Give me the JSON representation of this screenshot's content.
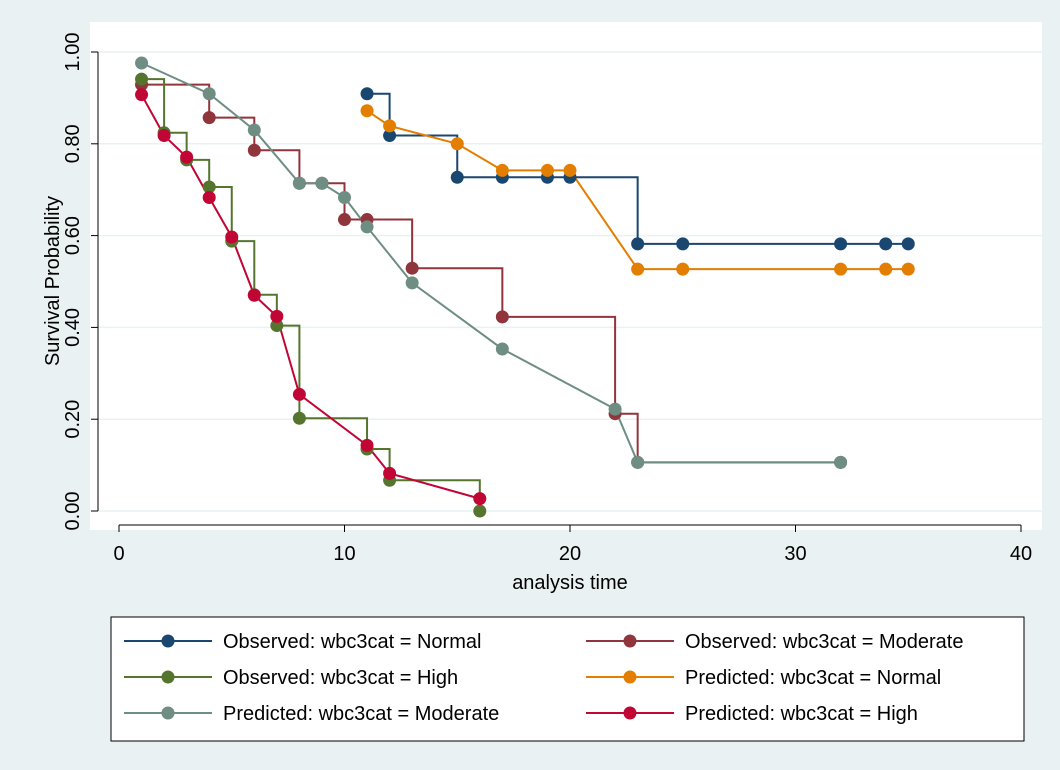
{
  "chart_data": {
    "type": "line",
    "xlabel": "analysis time",
    "ylabel": "Survival Probability",
    "xlim": [
      0,
      40
    ],
    "ylim": [
      0,
      1
    ],
    "xticks": [
      0,
      10,
      20,
      30,
      40
    ],
    "yticks": [
      0,
      0.2,
      0.4,
      0.6,
      0.8,
      1.0
    ],
    "xtick_labels": [
      "0",
      "10",
      "20",
      "30",
      "40"
    ],
    "ytick_labels": [
      "0.00",
      "0.20",
      "0.40",
      "0.60",
      "0.80",
      "1.00"
    ],
    "grid": "horizontal",
    "legend_position": "bottom",
    "series": [
      {
        "name": "Observed: wbc3cat = Normal",
        "color": "#1a476f",
        "step": true,
        "points": [
          [
            11,
            0.909
          ],
          [
            12,
            0.818
          ],
          [
            15,
            0.727
          ],
          [
            17,
            0.727
          ],
          [
            19,
            0.727
          ],
          [
            20,
            0.727
          ],
          [
            23,
            0.582
          ],
          [
            25,
            0.582
          ],
          [
            32,
            0.582
          ],
          [
            34,
            0.582
          ],
          [
            35,
            0.582
          ]
        ]
      },
      {
        "name": "Observed: wbc3cat = Moderate",
        "color": "#90353b",
        "step": true,
        "points": [
          [
            1,
            0.929
          ],
          [
            4,
            0.857
          ],
          [
            6,
            0.786
          ],
          [
            8,
            0.714
          ],
          [
            9,
            0.714
          ],
          [
            10,
            0.635
          ],
          [
            11,
            0.635
          ],
          [
            13,
            0.529
          ],
          [
            17,
            0.423
          ],
          [
            22,
            0.212
          ],
          [
            23,
            0.106
          ],
          [
            32,
            0.106
          ]
        ]
      },
      {
        "name": "Observed: wbc3cat = High",
        "color": "#55752f",
        "step": true,
        "points": [
          [
            1,
            0.941
          ],
          [
            2,
            0.824
          ],
          [
            3,
            0.765
          ],
          [
            4,
            0.706
          ],
          [
            5,
            0.588
          ],
          [
            6,
            0.471
          ],
          [
            7,
            0.404
          ],
          [
            8,
            0.202
          ],
          [
            11,
            0.135
          ],
          [
            12,
            0.067
          ],
          [
            16,
            0.0
          ]
        ]
      },
      {
        "name": "Predicted: wbc3cat = Normal",
        "color": "#e37e00",
        "step": false,
        "points": [
          [
            11,
            0.872
          ],
          [
            12,
            0.839
          ],
          [
            15,
            0.8
          ],
          [
            17,
            0.742
          ],
          [
            19,
            0.742
          ],
          [
            20,
            0.742
          ],
          [
            23,
            0.527
          ],
          [
            25,
            0.527
          ],
          [
            32,
            0.527
          ],
          [
            34,
            0.527
          ],
          [
            35,
            0.527
          ]
        ]
      },
      {
        "name": "Predicted: wbc3cat = Moderate",
        "color": "#6e8e84",
        "step": false,
        "points": [
          [
            1,
            0.976
          ],
          [
            4,
            0.909
          ],
          [
            6,
            0.83
          ],
          [
            8,
            0.714
          ],
          [
            9,
            0.714
          ],
          [
            10,
            0.683
          ],
          [
            11,
            0.619
          ],
          [
            13,
            0.497
          ],
          [
            17,
            0.353
          ],
          [
            22,
            0.222
          ],
          [
            23,
            0.106
          ],
          [
            32,
            0.106
          ]
        ]
      },
      {
        "name": "Predicted: wbc3cat = High",
        "color": "#c10534",
        "step": false,
        "points": [
          [
            1,
            0.907
          ],
          [
            2,
            0.818
          ],
          [
            3,
            0.771
          ],
          [
            4,
            0.683
          ],
          [
            5,
            0.597
          ],
          [
            6,
            0.47
          ],
          [
            7,
            0.424
          ],
          [
            8,
            0.254
          ],
          [
            11,
            0.143
          ],
          [
            12,
            0.082
          ],
          [
            16,
            0.027
          ]
        ]
      }
    ]
  }
}
